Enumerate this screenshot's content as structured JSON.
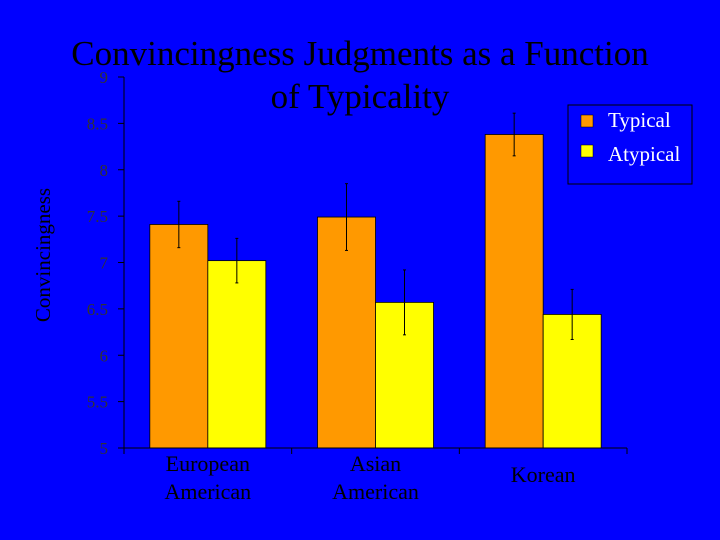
{
  "slide": {
    "title_line1": "Convincingness Judgments as a Function",
    "title_line2": "of Typicality"
  },
  "colors": {
    "background": "#0000ff",
    "typical": "#ff9900",
    "atypical": "#ffff00",
    "axis": "#000000",
    "legend_text": "#ffffff",
    "tick_text": "#333333"
  },
  "chart_data": {
    "type": "bar",
    "categories": [
      "European American",
      "Asian American",
      "Korean"
    ],
    "category_lines": [
      [
        "European",
        "American"
      ],
      [
        "Asian",
        "American"
      ],
      [
        "Korean"
      ]
    ],
    "series": [
      {
        "name": "Typical",
        "values": [
          7.41,
          7.49,
          8.38
        ],
        "error": [
          0.25,
          0.36,
          0.23
        ]
      },
      {
        "name": "Atypical",
        "values": [
          7.02,
          6.57,
          6.44
        ],
        "error": [
          0.24,
          0.35,
          0.27
        ]
      }
    ],
    "ylabel": "Convincingness",
    "ylim": [
      5,
      9
    ],
    "yticks": [
      "5",
      "5.5",
      "6",
      "6.5",
      "7",
      "7.5",
      "8",
      "8.5",
      "9"
    ],
    "legend": "top-right",
    "grid": false
  }
}
